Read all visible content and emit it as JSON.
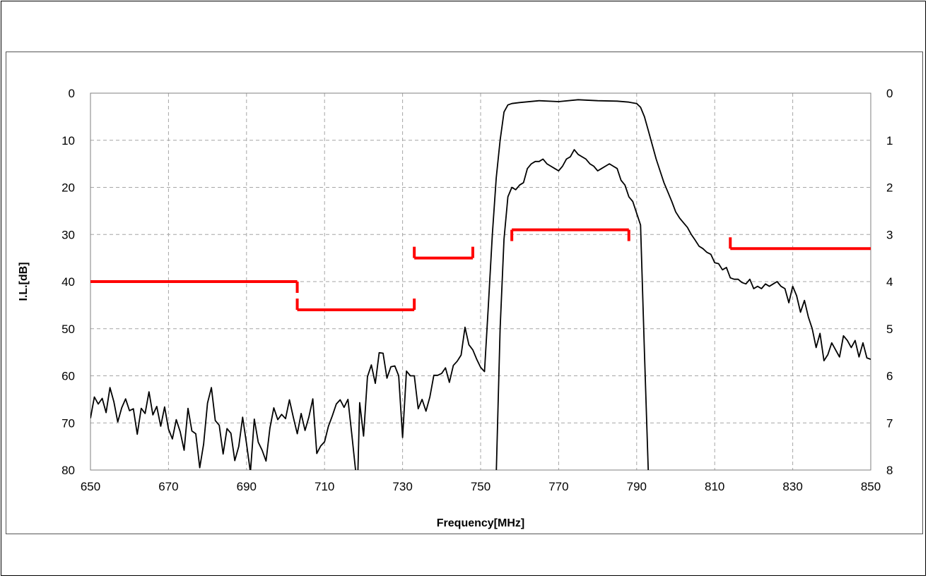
{
  "chart_data": {
    "type": "line",
    "title": "",
    "xlabel": "Frequency[MHz]",
    "ylabel": "I.L.[dB]",
    "xlim": [
      650,
      850
    ],
    "ylim": [
      0,
      80
    ],
    "y2lim": [
      0,
      8
    ],
    "x_ticks": [
      "650",
      "670",
      "690",
      "710",
      "730",
      "750",
      "770",
      "790",
      "810",
      "830",
      "850"
    ],
    "y_ticks": [
      "0",
      "10",
      "20",
      "30",
      "40",
      "50",
      "60",
      "70",
      "80"
    ],
    "y2_ticks": [
      "0",
      "1",
      "2",
      "3",
      "4",
      "5",
      "6",
      "7",
      "8"
    ],
    "grid": true,
    "y_inverted": true,
    "colors": {
      "curve": "#000000",
      "mask": "#ff0000",
      "grid": "#a6a6a6"
    },
    "series": [
      {
        "axis": "left",
        "points": [
          [
            650,
            69.0
          ],
          [
            651,
            64.5
          ],
          [
            652,
            66.0
          ],
          [
            653,
            64.8
          ],
          [
            654,
            67.8
          ],
          [
            655,
            62.5
          ],
          [
            656,
            65.5
          ],
          [
            657,
            69.8
          ],
          [
            658,
            66.8
          ],
          [
            659,
            64.9
          ],
          [
            660,
            67.4
          ],
          [
            661,
            67.0
          ],
          [
            662,
            72.4
          ],
          [
            663,
            66.9
          ],
          [
            664,
            68.0
          ],
          [
            665,
            63.4
          ],
          [
            666,
            68.3
          ],
          [
            667,
            66.5
          ],
          [
            668,
            70.7
          ],
          [
            669,
            66.6
          ],
          [
            670,
            71.3
          ],
          [
            671,
            73.4
          ],
          [
            672,
            69.3
          ],
          [
            673,
            71.9
          ],
          [
            674,
            75.8
          ],
          [
            675,
            66.9
          ],
          [
            676,
            71.7
          ],
          [
            677,
            72.3
          ],
          [
            678,
            79.5
          ],
          [
            679,
            74.5
          ],
          [
            680,
            65.8
          ],
          [
            681,
            62.5
          ],
          [
            682,
            69.5
          ],
          [
            683,
            70.5
          ],
          [
            684,
            76.6
          ],
          [
            685,
            71.2
          ],
          [
            686,
            72.2
          ],
          [
            687,
            78.0
          ],
          [
            688,
            75.0
          ],
          [
            689,
            68.8
          ],
          [
            690,
            74.4
          ],
          [
            691,
            80.5
          ],
          [
            692,
            69.2
          ],
          [
            693,
            74.1
          ],
          [
            694,
            75.8
          ],
          [
            695,
            78.1
          ],
          [
            696,
            71.1
          ],
          [
            697,
            66.8
          ],
          [
            698,
            69.3
          ],
          [
            699,
            68.2
          ],
          [
            700,
            69.1
          ],
          [
            701,
            65.1
          ],
          [
            702,
            68.8
          ],
          [
            703,
            72.3
          ],
          [
            704,
            68.0
          ],
          [
            705,
            71.6
          ],
          [
            706,
            68.7
          ],
          [
            707,
            64.9
          ],
          [
            708,
            76.5
          ],
          [
            709,
            74.9
          ],
          [
            710,
            74.0
          ],
          [
            711,
            70.7
          ],
          [
            712,
            68.5
          ],
          [
            713,
            66.0
          ],
          [
            714,
            65.1
          ],
          [
            715,
            66.7
          ],
          [
            716,
            65.0
          ],
          [
            717,
            72.5
          ],
          [
            718,
            80.5
          ],
          [
            718.5,
            82
          ],
          [
            719,
            65.7
          ],
          [
            720,
            72.8
          ],
          [
            721,
            60.2
          ],
          [
            722,
            57.7
          ],
          [
            723,
            61.6
          ],
          [
            724,
            55.1
          ],
          [
            725,
            55.2
          ],
          [
            726,
            60.5
          ],
          [
            727,
            58.1
          ],
          [
            728,
            57.9
          ],
          [
            729,
            60.0
          ],
          [
            730,
            73.1
          ],
          [
            731,
            59.0
          ],
          [
            732,
            60.0
          ],
          [
            733,
            60.0
          ],
          [
            734,
            67.0
          ],
          [
            735,
            65.0
          ],
          [
            736,
            67.5
          ],
          [
            737,
            64.5
          ],
          [
            738,
            59.9
          ],
          [
            739,
            59.9
          ],
          [
            740,
            59.5
          ],
          [
            741,
            58.3
          ],
          [
            742,
            61.4
          ],
          [
            743,
            57.8
          ],
          [
            744,
            56.9
          ],
          [
            745,
            55.6
          ],
          [
            746,
            49.7
          ],
          [
            747,
            53.4
          ],
          [
            748,
            54.5
          ],
          [
            749,
            56.5
          ],
          [
            750,
            58.2
          ],
          [
            751,
            59.1
          ],
          [
            752,
            45
          ],
          [
            753,
            30
          ],
          [
            754,
            18
          ],
          [
            755,
            10
          ],
          [
            756,
            4
          ],
          [
            757,
            2.5
          ],
          [
            758,
            2.2
          ],
          [
            760,
            2.0
          ],
          [
            765,
            1.6
          ],
          [
            770,
            1.8
          ],
          [
            775,
            1.4
          ],
          [
            780,
            1.6
          ],
          [
            785,
            1.7
          ],
          [
            788,
            1.9
          ],
          [
            790,
            2.2
          ],
          [
            791,
            3.0
          ],
          [
            792,
            5
          ],
          [
            793,
            8
          ],
          [
            794,
            11
          ],
          [
            795,
            14
          ],
          [
            796,
            16.5
          ],
          [
            797,
            19
          ],
          [
            798,
            21
          ],
          [
            799,
            23
          ],
          [
            800,
            25.2
          ],
          [
            801,
            26.5
          ],
          [
            802,
            27.5
          ],
          [
            803,
            28.5
          ],
          [
            804,
            30.0
          ],
          [
            805,
            31.2
          ],
          [
            806,
            32.5
          ],
          [
            807,
            33.0
          ],
          [
            808,
            33.8
          ],
          [
            809,
            34.2
          ],
          [
            810,
            36.0
          ],
          [
            811,
            36.2
          ],
          [
            812,
            37.5
          ],
          [
            813,
            37.0
          ],
          [
            814,
            39.2
          ],
          [
            815,
            39.5
          ],
          [
            816,
            39.5
          ],
          [
            817,
            40.2
          ],
          [
            818,
            40.5
          ],
          [
            819,
            39.5
          ],
          [
            820,
            41.5
          ],
          [
            821,
            41.0
          ],
          [
            822,
            41.5
          ],
          [
            823,
            40.5
          ],
          [
            824,
            41.0
          ],
          [
            825,
            40.5
          ],
          [
            826,
            40.0
          ],
          [
            827,
            41.0
          ],
          [
            828,
            41.5
          ],
          [
            829,
            44.5
          ],
          [
            830,
            41.0
          ],
          [
            831,
            43.0
          ],
          [
            832,
            46.5
          ],
          [
            833,
            44.0
          ],
          [
            834,
            47.5
          ],
          [
            835,
            50.0
          ],
          [
            836,
            54.0
          ],
          [
            837,
            51.0
          ],
          [
            838,
            56.8
          ],
          [
            839,
            55.5
          ],
          [
            840,
            53.0
          ],
          [
            841,
            54.5
          ],
          [
            842,
            56.0
          ],
          [
            843,
            51.5
          ],
          [
            844,
            52.5
          ],
          [
            845,
            54.0
          ],
          [
            846,
            52.5
          ],
          [
            847,
            56.0
          ],
          [
            848,
            53.0
          ],
          [
            849,
            56.2
          ],
          [
            850,
            56.5
          ]
        ]
      },
      {
        "axis": "right",
        "points": [
          [
            754,
            8.1
          ],
          [
            755,
            5.0
          ],
          [
            756,
            3.1
          ],
          [
            757,
            2.2
          ],
          [
            758,
            2.0
          ],
          [
            759,
            2.05
          ],
          [
            760,
            1.95
          ],
          [
            761,
            1.9
          ],
          [
            762,
            1.6
          ],
          [
            763,
            1.5
          ],
          [
            764,
            1.45
          ],
          [
            765,
            1.45
          ],
          [
            766,
            1.4
          ],
          [
            767,
            1.5
          ],
          [
            768,
            1.55
          ],
          [
            769,
            1.6
          ],
          [
            770,
            1.65
          ],
          [
            771,
            1.55
          ],
          [
            772,
            1.4
          ],
          [
            773,
            1.35
          ],
          [
            774,
            1.2
          ],
          [
            775,
            1.3
          ],
          [
            776,
            1.35
          ],
          [
            777,
            1.4
          ],
          [
            778,
            1.5
          ],
          [
            779,
            1.55
          ],
          [
            780,
            1.65
          ],
          [
            781,
            1.6
          ],
          [
            782,
            1.55
          ],
          [
            783,
            1.5
          ],
          [
            784,
            1.55
          ],
          [
            785,
            1.6
          ],
          [
            786,
            1.85
          ],
          [
            787,
            1.95
          ],
          [
            788,
            2.2
          ],
          [
            789,
            2.3
          ],
          [
            790,
            2.55
          ],
          [
            791,
            2.8
          ],
          [
            792,
            5.5
          ],
          [
            793,
            8.1
          ]
        ]
      }
    ],
    "mask_segments": [
      {
        "x": [
          650,
          703
        ],
        "y": 40,
        "tick_down": [
          703
        ]
      },
      {
        "x": [
          703,
          733
        ],
        "y": 46,
        "tick_up": [
          703,
          733
        ]
      },
      {
        "x": [
          733,
          748
        ],
        "y": 35,
        "tick_up": [
          733,
          748
        ]
      },
      {
        "x": [
          758,
          788
        ],
        "y": 29,
        "tick_down": [
          758,
          788
        ]
      },
      {
        "x": [
          814,
          850
        ],
        "y": 33,
        "tick_up": [
          814
        ]
      }
    ]
  }
}
